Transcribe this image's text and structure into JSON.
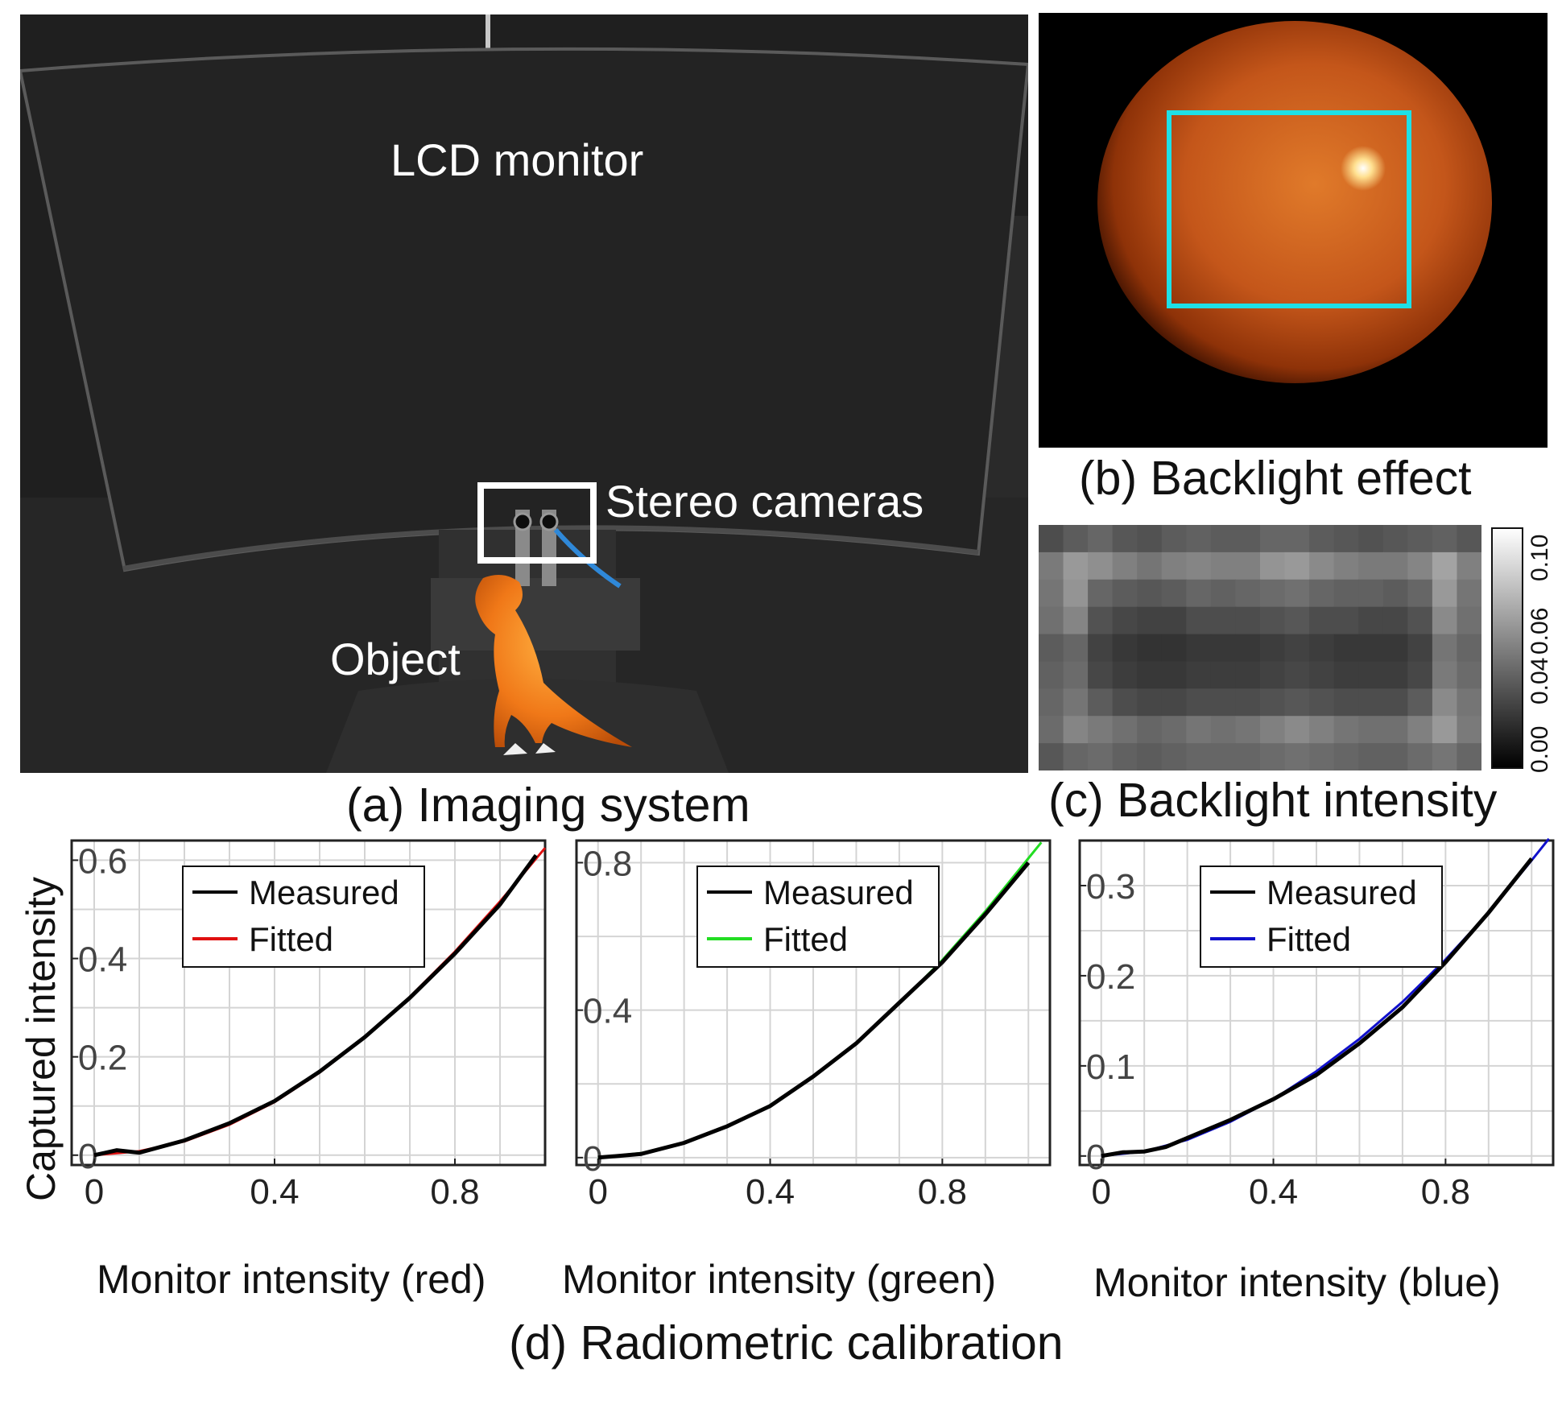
{
  "panel_a": {
    "caption": "(a) Imaging system",
    "label_monitor": "LCD monitor",
    "label_cameras": "Stereo cameras",
    "label_object": "Object"
  },
  "panel_b": {
    "caption": "(b) Backlight effect"
  },
  "panel_c": {
    "caption": "(c) Backlight intensity",
    "colorbar_ticks": [
      "0.00",
      "0.04",
      "0.06",
      "0.10"
    ],
    "grid": [
      [
        0.03,
        0.036,
        0.04,
        0.034,
        0.032,
        0.036,
        0.038,
        0.036,
        0.036,
        0.04,
        0.04,
        0.036,
        0.034,
        0.032,
        0.034,
        0.036,
        0.038,
        0.034
      ],
      [
        0.048,
        0.06,
        0.056,
        0.05,
        0.046,
        0.05,
        0.052,
        0.05,
        0.05,
        0.058,
        0.06,
        0.054,
        0.05,
        0.048,
        0.048,
        0.052,
        0.064,
        0.05
      ],
      [
        0.046,
        0.058,
        0.04,
        0.036,
        0.034,
        0.036,
        0.04,
        0.038,
        0.04,
        0.042,
        0.044,
        0.04,
        0.038,
        0.038,
        0.036,
        0.04,
        0.06,
        0.046
      ],
      [
        0.044,
        0.052,
        0.032,
        0.028,
        0.026,
        0.026,
        0.03,
        0.03,
        0.03,
        0.032,
        0.034,
        0.03,
        0.03,
        0.028,
        0.028,
        0.032,
        0.054,
        0.044
      ],
      [
        0.036,
        0.04,
        0.026,
        0.022,
        0.02,
        0.02,
        0.022,
        0.022,
        0.022,
        0.024,
        0.026,
        0.024,
        0.022,
        0.022,
        0.022,
        0.026,
        0.046,
        0.04
      ],
      [
        0.038,
        0.042,
        0.028,
        0.024,
        0.022,
        0.022,
        0.024,
        0.024,
        0.024,
        0.026,
        0.028,
        0.026,
        0.024,
        0.024,
        0.024,
        0.028,
        0.048,
        0.042
      ],
      [
        0.04,
        0.046,
        0.036,
        0.03,
        0.028,
        0.028,
        0.03,
        0.03,
        0.03,
        0.032,
        0.034,
        0.032,
        0.03,
        0.03,
        0.03,
        0.036,
        0.054,
        0.046
      ],
      [
        0.042,
        0.052,
        0.048,
        0.044,
        0.04,
        0.042,
        0.046,
        0.044,
        0.046,
        0.05,
        0.054,
        0.05,
        0.046,
        0.044,
        0.044,
        0.05,
        0.06,
        0.048
      ],
      [
        0.034,
        0.04,
        0.042,
        0.038,
        0.036,
        0.038,
        0.04,
        0.04,
        0.04,
        0.042,
        0.044,
        0.042,
        0.04,
        0.038,
        0.038,
        0.042,
        0.046,
        0.04
      ]
    ]
  },
  "panel_d": {
    "caption": "(d) Radiometric calibration",
    "ylabel": "Captured intensity",
    "legend_measured": "Measured",
    "legend_fitted": "Fitted"
  },
  "chart_data": [
    {
      "type": "line",
      "xlabel": "Monitor intensity (red)",
      "ylabel": "Captured intensity",
      "xlim": [
        -0.05,
        1.0
      ],
      "ylim": [
        -0.02,
        0.64
      ],
      "xticks": [
        "0",
        "0.4",
        "0.8"
      ],
      "yticks": [
        "0",
        "0.2",
        "0.4",
        "0.6"
      ],
      "legend": "top-left",
      "grid": true,
      "series": [
        {
          "name": "Measured",
          "color": "#000000",
          "x": [
            0,
            0.05,
            0.1,
            0.2,
            0.3,
            0.4,
            0.5,
            0.6,
            0.7,
            0.8,
            0.9,
            0.98
          ],
          "y": [
            0,
            0.01,
            0.005,
            0.03,
            0.065,
            0.11,
            0.17,
            0.24,
            0.32,
            0.41,
            0.51,
            0.61
          ]
        },
        {
          "name": "Fitted",
          "color": "#e01010",
          "x": [
            0,
            0.1,
            0.2,
            0.3,
            0.4,
            0.5,
            0.6,
            0.7,
            0.8,
            0.9,
            1.0
          ],
          "y": [
            0,
            0.008,
            0.028,
            0.062,
            0.108,
            0.168,
            0.24,
            0.322,
            0.414,
            0.516,
            0.625
          ]
        }
      ]
    },
    {
      "type": "line",
      "xlabel": "Monitor intensity (green)",
      "ylabel": "",
      "xlim": [
        -0.05,
        1.05
      ],
      "ylim": [
        -0.02,
        0.86
      ],
      "xticks": [
        "0",
        "0.4",
        "0.8"
      ],
      "yticks": [
        "0",
        "0.4",
        "0.8"
      ],
      "legend": "top-right",
      "grid": true,
      "series": [
        {
          "name": "Measured",
          "color": "#000000",
          "x": [
            0,
            0.05,
            0.1,
            0.2,
            0.3,
            0.4,
            0.5,
            0.6,
            0.7,
            0.8,
            0.9,
            1.0
          ],
          "y": [
            0,
            0.005,
            0.01,
            0.04,
            0.085,
            0.14,
            0.22,
            0.31,
            0.42,
            0.53,
            0.66,
            0.8
          ]
        },
        {
          "name": "Fitted",
          "color": "#22dd22",
          "x": [
            0,
            0.1,
            0.2,
            0.3,
            0.4,
            0.5,
            0.6,
            0.7,
            0.8,
            0.9,
            1.0,
            1.03
          ],
          "y": [
            0,
            0.012,
            0.04,
            0.084,
            0.142,
            0.218,
            0.31,
            0.418,
            0.536,
            0.668,
            0.812,
            0.855
          ]
        }
      ]
    },
    {
      "type": "line",
      "xlabel": "Monitor intensity (blue)",
      "ylabel": "",
      "xlim": [
        -0.05,
        1.05
      ],
      "ylim": [
        -0.01,
        0.35
      ],
      "xticks": [
        "0",
        "0.4",
        "0.8"
      ],
      "yticks": [
        "0",
        "0.1",
        "0.2",
        "0.3"
      ],
      "legend": "top-right",
      "grid": true,
      "series": [
        {
          "name": "Measured",
          "color": "#000000",
          "x": [
            0,
            0.05,
            0.1,
            0.15,
            0.2,
            0.25,
            0.3,
            0.4,
            0.5,
            0.6,
            0.7,
            0.8,
            0.9,
            1.0
          ],
          "y": [
            0,
            0.004,
            0.005,
            0.01,
            0.02,
            0.03,
            0.04,
            0.063,
            0.09,
            0.125,
            0.165,
            0.215,
            0.27,
            0.33
          ]
        },
        {
          "name": "Fitted",
          "color": "#1010cc",
          "x": [
            0,
            0.1,
            0.2,
            0.3,
            0.4,
            0.5,
            0.6,
            0.7,
            0.8,
            0.9,
            1.0,
            1.04
          ],
          "y": [
            0,
            0.005,
            0.018,
            0.038,
            0.063,
            0.094,
            0.13,
            0.171,
            0.218,
            0.27,
            0.328,
            0.352
          ]
        }
      ]
    }
  ]
}
